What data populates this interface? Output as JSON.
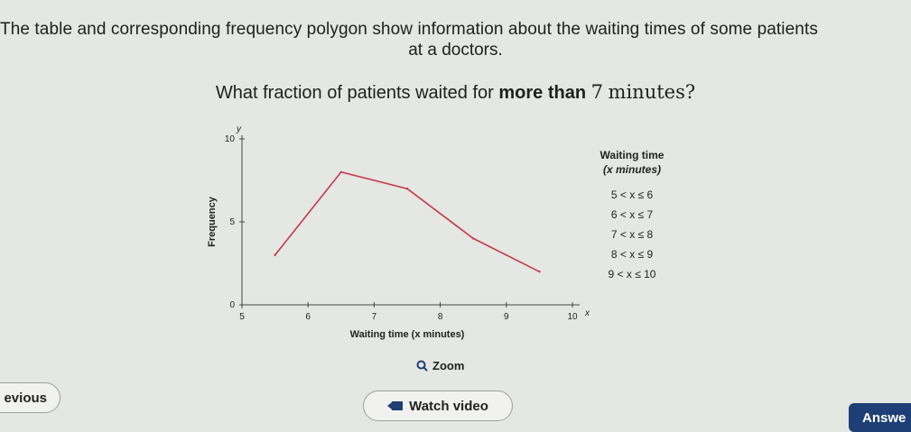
{
  "question": {
    "intro_line1": "The table and corresponding frequency polygon show information about the waiting times of some patients",
    "intro_line2": "at a doctors.",
    "prompt_prefix": "What fraction of patients waited for ",
    "prompt_bold": "more than",
    "prompt_number": "7",
    "prompt_suffix": "minutes?"
  },
  "chart_data": {
    "type": "line",
    "xlabel": "Waiting time (x minutes)",
    "ylabel": "Frequency",
    "x_axis_symbol": "x",
    "y_axis_symbol": "y",
    "xlim": [
      5,
      10
    ],
    "ylim": [
      0,
      10
    ],
    "x_ticks": [
      "5",
      "6",
      "7",
      "8",
      "9",
      "10"
    ],
    "y_ticks": [
      "0",
      "5",
      "10"
    ],
    "series": [
      {
        "x": [
          5.5,
          6.5,
          7.5,
          8.5,
          9.5
        ],
        "y": [
          3,
          8,
          7,
          4,
          2
        ],
        "color": "#c8364f"
      }
    ],
    "grid": false
  },
  "table": {
    "header_line1": "Waiting time",
    "header_line2": "(x minutes)",
    "rows": [
      "5 < x ≤ 6",
      "6 < x ≤ 7",
      "7 < x ≤ 8",
      "8 < x ≤ 9",
      "9 < x ≤ 10"
    ]
  },
  "controls": {
    "zoom_label": "Zoom",
    "previous_label": "evious",
    "watch_video_label": "Watch video",
    "answer_label": "Answe"
  },
  "colors": {
    "line": "#c8364f",
    "answer_button": "#1e3f76"
  }
}
